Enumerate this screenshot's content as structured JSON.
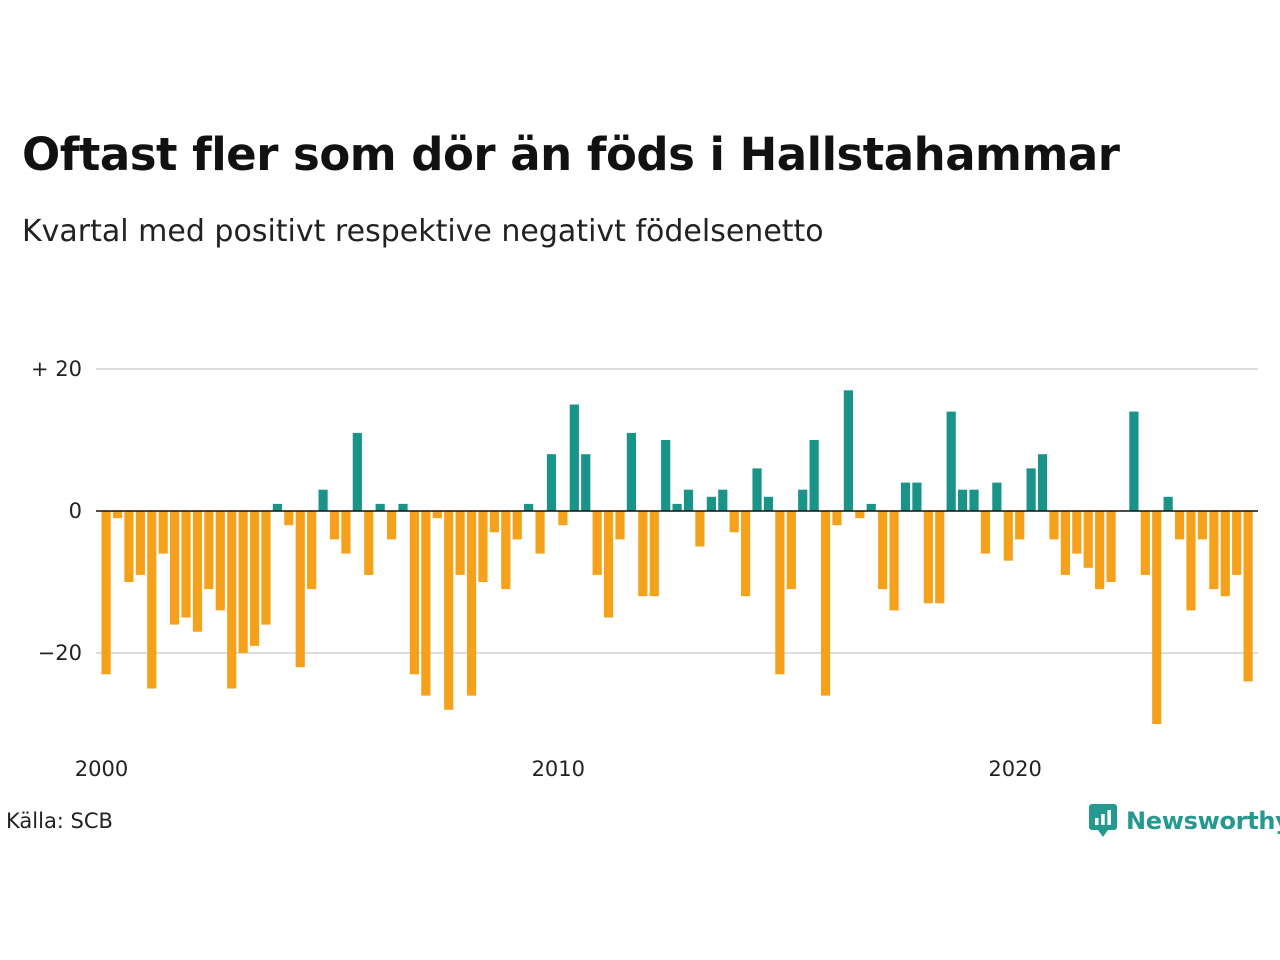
{
  "header": {
    "title": "Oftast fler som dör än föds i Hallstahammar",
    "subtitle": "Kvartal med positivt respektive negativt födelsenetto"
  },
  "footer": {
    "source": "Källa: SCB",
    "brand": "Newsworthy",
    "brand_icon": "newsworthy-logo-icon"
  },
  "colors": {
    "positive": "#1a9488",
    "negative": "#f5a11c",
    "grid": "#dddddd",
    "zero_line": "#111111",
    "brand": "#25998f"
  },
  "chart_data": {
    "type": "bar",
    "title": "Oftast fler som dör än föds i Hallstahammar",
    "subtitle": "Kvartal med positivt respektive negativt födelsenetto",
    "xlabel": "",
    "ylabel": "",
    "ylim": [
      -31,
      23
    ],
    "y_ticks": [
      {
        "value": 20,
        "label": "+ 20"
      },
      {
        "value": 0,
        "label": "0"
      },
      {
        "value": -20,
        "label": "−20"
      }
    ],
    "x_ticks": [
      {
        "value": "2000",
        "label": "2000"
      },
      {
        "value": "2010",
        "label": "2010"
      },
      {
        "value": "2020",
        "label": "2020"
      }
    ],
    "grid": true,
    "legend": "none",
    "categories": [
      "2000K1",
      "2000K2",
      "2000K3",
      "2000K4",
      "2001K1",
      "2001K2",
      "2001K3",
      "2001K4",
      "2002K1",
      "2002K2",
      "2002K3",
      "2002K4",
      "2003K1",
      "2003K2",
      "2003K3",
      "2003K4",
      "2004K1",
      "2004K2",
      "2004K3",
      "2004K4",
      "2005K1",
      "2005K2",
      "2005K3",
      "2005K4",
      "2006K1",
      "2006K2",
      "2006K3",
      "2006K4",
      "2007K1",
      "2007K2",
      "2007K3",
      "2007K4",
      "2008K1",
      "2008K2",
      "2008K3",
      "2008K4",
      "2009K1",
      "2009K2",
      "2009K3",
      "2009K4",
      "2010K1",
      "2010K2",
      "2010K3",
      "2010K4",
      "2011K1",
      "2011K2",
      "2011K3",
      "2011K4",
      "2012K1",
      "2012K2",
      "2012K3",
      "2012K4",
      "2013K1",
      "2013K2",
      "2013K3",
      "2013K4",
      "2014K1",
      "2014K2",
      "2014K3",
      "2014K4",
      "2015K1",
      "2015K2",
      "2015K3",
      "2015K4",
      "2016K1",
      "2016K2",
      "2016K3",
      "2016K4",
      "2017K1",
      "2017K2",
      "2017K3",
      "2017K4",
      "2018K1",
      "2018K2",
      "2018K3",
      "2018K4",
      "2019K1",
      "2019K2",
      "2019K3",
      "2019K4",
      "2020K1",
      "2020K2",
      "2020K3",
      "2020K4",
      "2021K1",
      "2021K2",
      "2021K3",
      "2021K4",
      "2022K1",
      "2022K2",
      "2022K3",
      "2022K4",
      "2023K1",
      "2023K2",
      "2023K3",
      "2023K4",
      "2024K1",
      "2024K2",
      "2024K3",
      "2024K4",
      "2025K1",
      "2025K2"
    ],
    "values": [
      -23,
      -1,
      -10,
      -9,
      -25,
      -6,
      -16,
      -15,
      -17,
      -11,
      -14,
      -25,
      -20,
      -19,
      -16,
      1,
      -2,
      -22,
      -11,
      3,
      -4,
      -6,
      11,
      -9,
      1,
      -4,
      1,
      -23,
      -26,
      -1,
      -28,
      -9,
      -26,
      -10,
      -3,
      -11,
      -4,
      1,
      -6,
      8,
      -2,
      15,
      8,
      -9,
      -15,
      -4,
      11,
      -12,
      -12,
      10,
      1,
      3,
      -5,
      2,
      3,
      -3,
      -12,
      6,
      2,
      -23,
      -11,
      3,
      10,
      -26,
      -2,
      17,
      -1,
      1,
      -11,
      -14,
      4,
      4,
      -13,
      -13,
      14,
      3,
      3,
      -6,
      4,
      -7,
      -4,
      6,
      8,
      -4,
      -9,
      -6,
      -8,
      -11,
      -10,
      0,
      14,
      -9,
      -30,
      2,
      -4,
      -14,
      -4,
      -11,
      -12,
      -9,
      -24,
      0
    ]
  }
}
